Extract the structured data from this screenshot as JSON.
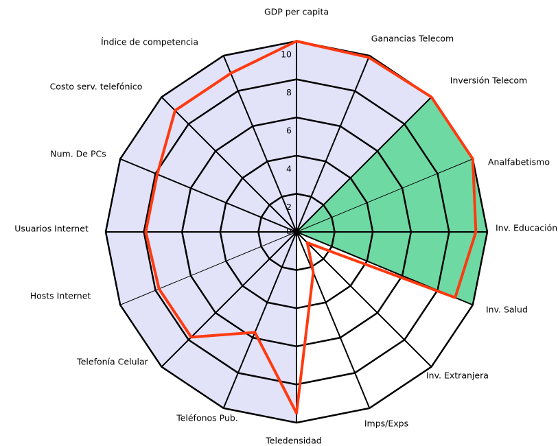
{
  "chart_data": {
    "type": "radar",
    "categories": [
      "GDP per capita",
      "Ganancias Telecom",
      "Inversión Telecom",
      "Analfabetismo",
      "Inv. Educación",
      "Inv. Salud",
      "Inv. Extranjera",
      "Imps/Exps",
      "Teledensidad",
      "Teléfonos Pub.",
      "Telefonía Celular",
      "Hosts Internet",
      "Usuarios Internet",
      "Num. De PCs",
      "Costo serv. telefónico",
      "Índice de competencia"
    ],
    "series": [
      {
        "color": "#e2e2f8",
        "fill": true,
        "values": [
          10,
          10,
          10,
          0,
          0,
          0,
          0,
          0,
          10,
          10,
          10,
          10,
          10,
          10,
          10,
          10
        ]
      },
      {
        "color": "#6fd9a4",
        "fill": true,
        "values": [
          0,
          0,
          10,
          10,
          10,
          10,
          0,
          0,
          0,
          0,
          0,
          0,
          0,
          0,
          0,
          0
        ]
      },
      {
        "color": "#ff3a10",
        "fill": false,
        "values": [
          10,
          9.9,
          10,
          10,
          9.4,
          9.0,
          0.8,
          2.3,
          9.5,
          5.7,
          7.8,
          7.8,
          7.9,
          7.9,
          9.0,
          9.0
        ]
      }
    ],
    "ylim": [
      0,
      10
    ],
    "yticks": [
      0,
      2,
      4,
      6,
      8,
      10
    ]
  }
}
